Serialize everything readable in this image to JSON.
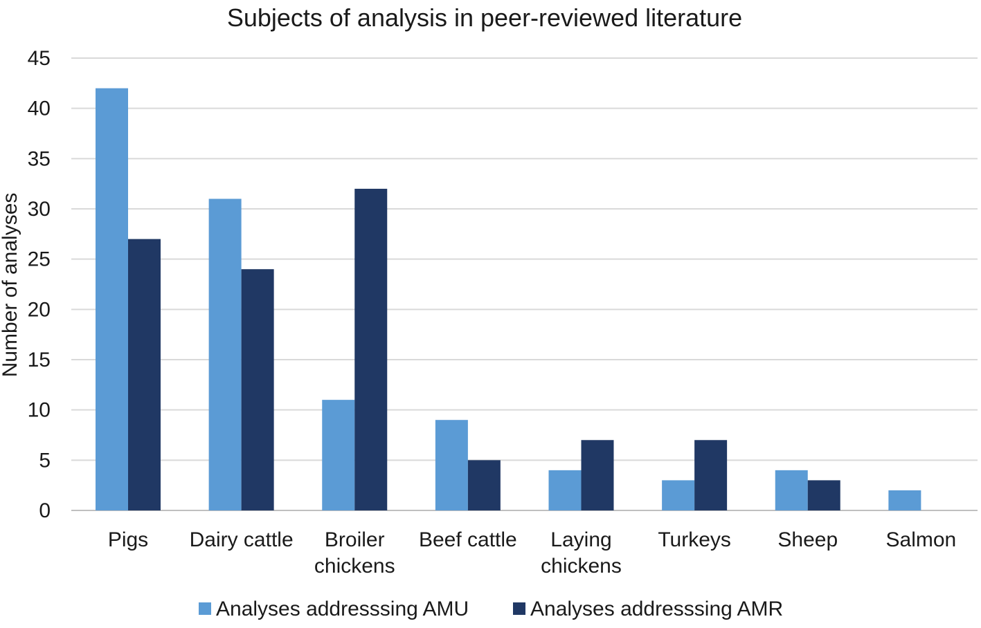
{
  "chart_data": {
    "type": "bar",
    "title": "Subjects of analysis in peer-reviewed literature",
    "xlabel": "",
    "ylabel": "Number of analyses",
    "ylim": [
      0,
      45
    ],
    "yticks": [
      0,
      5,
      10,
      15,
      20,
      25,
      30,
      35,
      40,
      45
    ],
    "grid": true,
    "legend_position": "bottom",
    "categories": [
      [
        "Pigs"
      ],
      [
        "Dairy cattle"
      ],
      [
        "Broiler",
        "chickens"
      ],
      [
        "Beef cattle"
      ],
      [
        "Laying",
        "chickens"
      ],
      [
        "Turkeys"
      ],
      [
        "Sheep"
      ],
      [
        "Salmon"
      ]
    ],
    "series": [
      {
        "name": "Analyses addresssing AMU",
        "color": "#5b9bd5",
        "values": [
          42,
          31,
          11,
          9,
          4,
          3,
          4,
          2
        ]
      },
      {
        "name": "Analyses addresssing AMR",
        "color": "#203864",
        "values": [
          27,
          24,
          32,
          5,
          7,
          7,
          3,
          0
        ]
      }
    ],
    "gridline_color": "#d9d9d9",
    "axis_color": "#bfbfbf"
  }
}
